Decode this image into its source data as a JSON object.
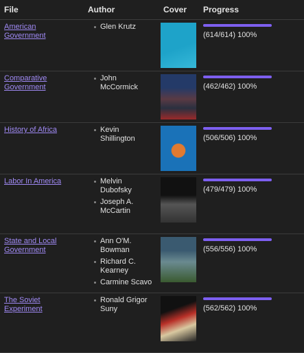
{
  "table": {
    "headers": [
      "File",
      "Author",
      "Cover",
      "Progress"
    ],
    "rows": [
      {
        "file": "American Government",
        "authors": [
          "Glen Krutz"
        ],
        "progress": {
          "text": "(614/614) 100%",
          "percent": 100
        }
      },
      {
        "file": "Comparative Government",
        "authors": [
          "John McCormick"
        ],
        "progress": {
          "text": "(462/462) 100%",
          "percent": 100
        }
      },
      {
        "file": "History of Africa",
        "authors": [
          "Kevin Shillington"
        ],
        "progress": {
          "text": "(506/506) 100%",
          "percent": 100
        }
      },
      {
        "file": "Labor In America",
        "authors": [
          "Melvin Dubofsky",
          "Joseph A. McCartin"
        ],
        "progress": {
          "text": "(479/479) 100%",
          "percent": 100
        }
      },
      {
        "file": "State and Local Government",
        "authors": [
          "Ann O'M. Bowman",
          "Richard C. Kearney",
          "Carmine Scavo"
        ],
        "progress": {
          "text": "(556/556) 100%",
          "percent": 100
        }
      },
      {
        "file": "The Soviet Experiment",
        "authors": [
          "Ronald Grigor Suny"
        ],
        "progress": {
          "text": "(562/562) 100%",
          "percent": 100
        }
      }
    ]
  }
}
